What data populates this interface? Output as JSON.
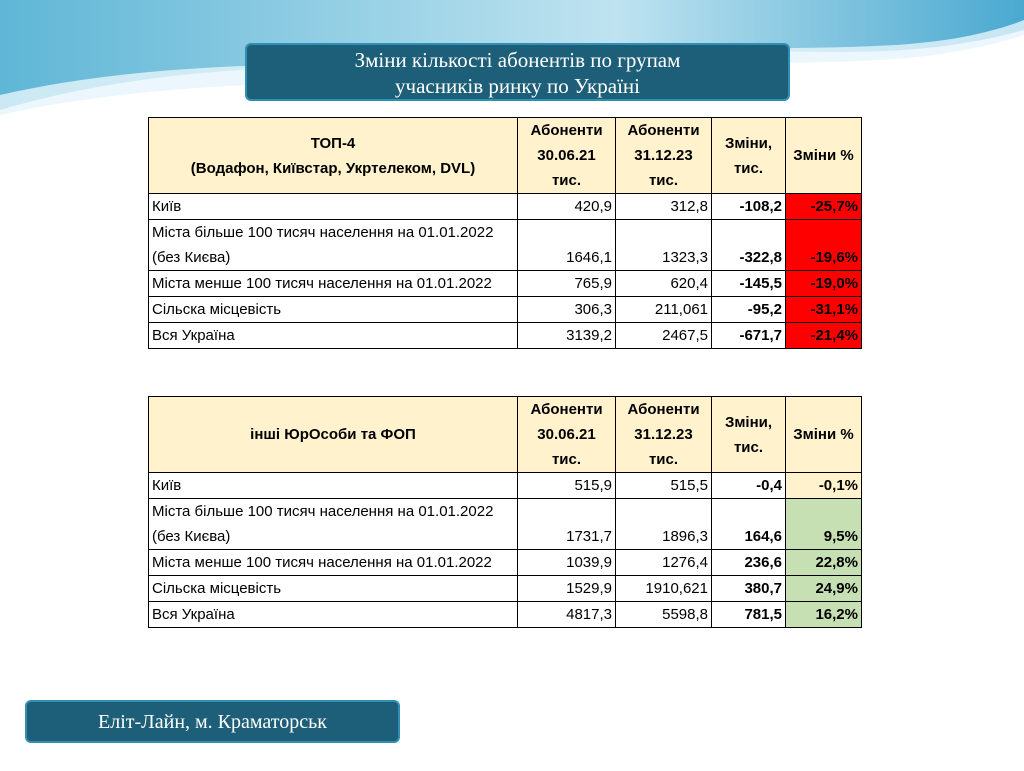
{
  "title": {
    "lines": [
      "Зміни кількості абонентів по групам",
      "учасників ринку по Україні"
    ]
  },
  "tables": [
    {
      "header": {
        "group": [
          "ТОП-4",
          "(Водафон, Київстар, Укртелеком, DVL)"
        ],
        "col1": [
          "Абоненти",
          "30.06.21",
          "тис."
        ],
        "col2": [
          "Абоненти",
          "31.12.23",
          "тис."
        ],
        "col3": [
          "Зміни,",
          "тис."
        ],
        "col4": [
          "Зміни %"
        ]
      },
      "rows": [
        [
          "Київ",
          "420,9",
          "312,8",
          "-108,2",
          "-25,7%"
        ],
        [
          "Міста більше 100 тисяч населення на 01.01.2022 (без Києва)",
          "1646,1",
          "1323,3",
          "-322,8",
          "-19,6%"
        ],
        [
          "Міста менше 100 тисяч населення на 01.01.2022",
          "765,9",
          "620,4",
          "-145,5",
          "-19,0%"
        ],
        [
          "Сільска місцевість",
          "306,3",
          "211,061",
          "-95,2",
          "-31,1%"
        ],
        [
          "Вся Україна",
          "3139,2",
          "2467,5",
          "-671,7",
          "-21,4%"
        ]
      ]
    },
    {
      "header": {
        "group": [
          "інші ЮрОсоби та ФОП"
        ],
        "col1": [
          "Абоненти",
          "30.06.21",
          "тис."
        ],
        "col2": [
          "Абоненти",
          "31.12.23",
          "тис."
        ],
        "col3": [
          "Зміни,",
          "тис."
        ],
        "col4": [
          "Зміни %"
        ]
      },
      "rows": [
        [
          "Київ",
          "515,9",
          "515,5",
          "-0,4",
          "-0,1%"
        ],
        [
          "Міста більше 100 тисяч населення на 01.01.2022 (без Києва)",
          "1731,7",
          "1896,3",
          "164,6",
          "9,5%"
        ],
        [
          "Міста менше 100 тисяч населення на 01.01.2022",
          "1039,9",
          "1276,4",
          "236,6",
          "22,8%"
        ],
        [
          "Сільска місцевість",
          "1529,9",
          "1910,621",
          "380,7",
          "24,9%"
        ],
        [
          "Вся Україна",
          "4817,3",
          "5598,8",
          "781,5",
          "16,2%"
        ]
      ]
    }
  ],
  "footer": "Еліт-Лайн, м. Краматорськ"
}
